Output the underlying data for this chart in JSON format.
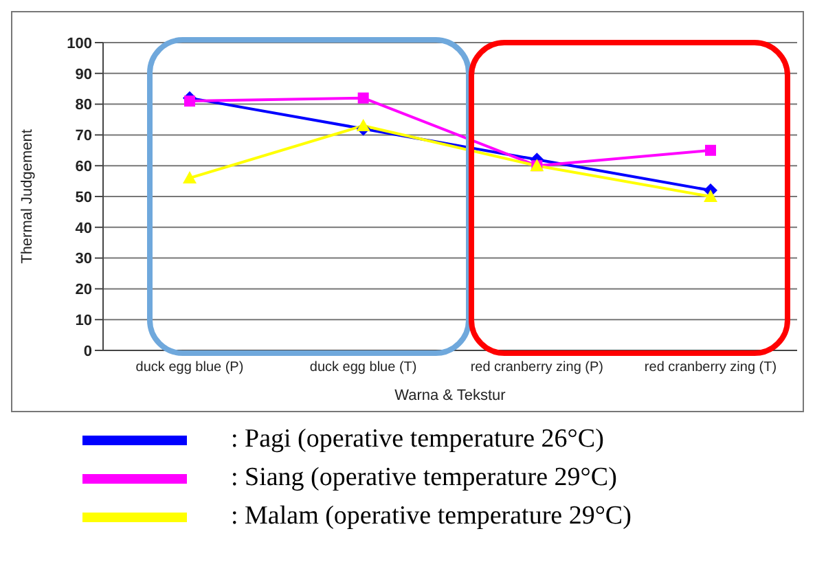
{
  "chart_data": {
    "type": "line",
    "xlabel": "Warna & Tekstur",
    "ylabel": "Thermal Judgement",
    "categories": [
      "duck egg blue (P)",
      "duck egg blue (T)",
      "red cranberry zing (P)",
      "red cranberry zing (T)"
    ],
    "ylim": [
      0,
      100
    ],
    "yticks": [
      0,
      10,
      20,
      30,
      40,
      50,
      60,
      70,
      80,
      90,
      100
    ],
    "grid": "y",
    "legend": "bottom",
    "series": [
      {
        "name": ": Pagi (operative temperature 26°C)",
        "color": "#0000ff",
        "marker": "diamond",
        "values": [
          82,
          72,
          62,
          52
        ]
      },
      {
        "name": ": Siang (operative temperature 29°C)",
        "color": "#ff00ff",
        "marker": "square",
        "values": [
          81,
          82,
          60,
          65
        ]
      },
      {
        "name": ": Malam (operative temperature 29°C)",
        "color": "#ffff00",
        "marker": "triangle",
        "values": [
          56,
          73,
          60,
          50
        ]
      }
    ]
  }
}
